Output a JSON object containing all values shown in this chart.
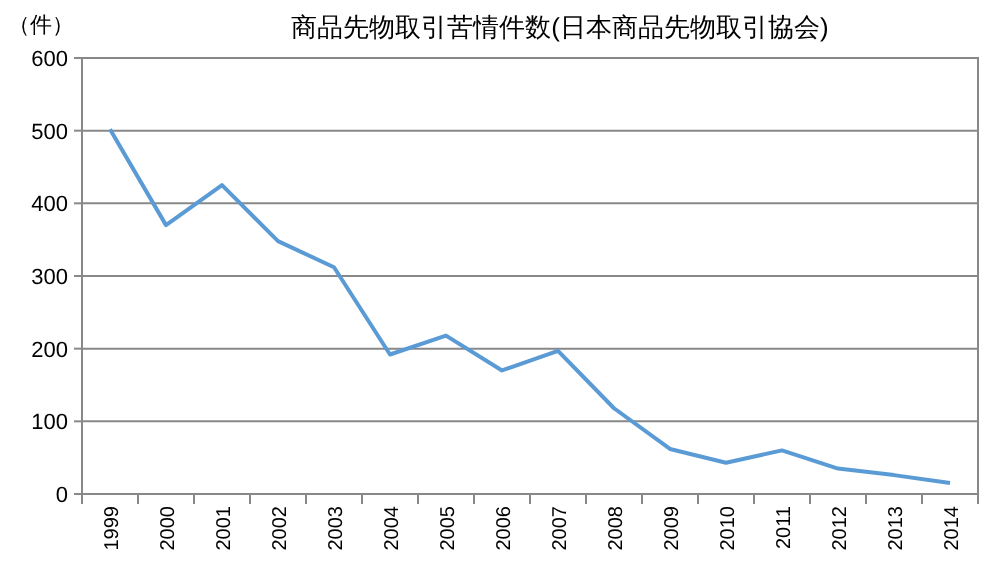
{
  "chart_data": {
    "type": "line",
    "title": "商品先物取引苦情件数(日本商品先物取引協会)",
    "ylabel": "（件）",
    "categories": [
      "1999",
      "2000",
      "2001",
      "2002",
      "2003",
      "2004",
      "2005",
      "2006",
      "2007",
      "2008",
      "2009",
      "2010",
      "2011",
      "2012",
      "2013",
      "2014"
    ],
    "series": [
      {
        "color": "#5b9bd5",
        "values": [
          502,
          370,
          425,
          348,
          312,
          192,
          218,
          170,
          197,
          118,
          62,
          43,
          60,
          35,
          26,
          15
        ]
      }
    ],
    "ylim": [
      0,
      600
    ],
    "yticks": [
      0,
      100,
      200,
      300,
      400,
      500,
      600
    ],
    "grid": "y",
    "marker": "none",
    "line_style": "solid"
  }
}
